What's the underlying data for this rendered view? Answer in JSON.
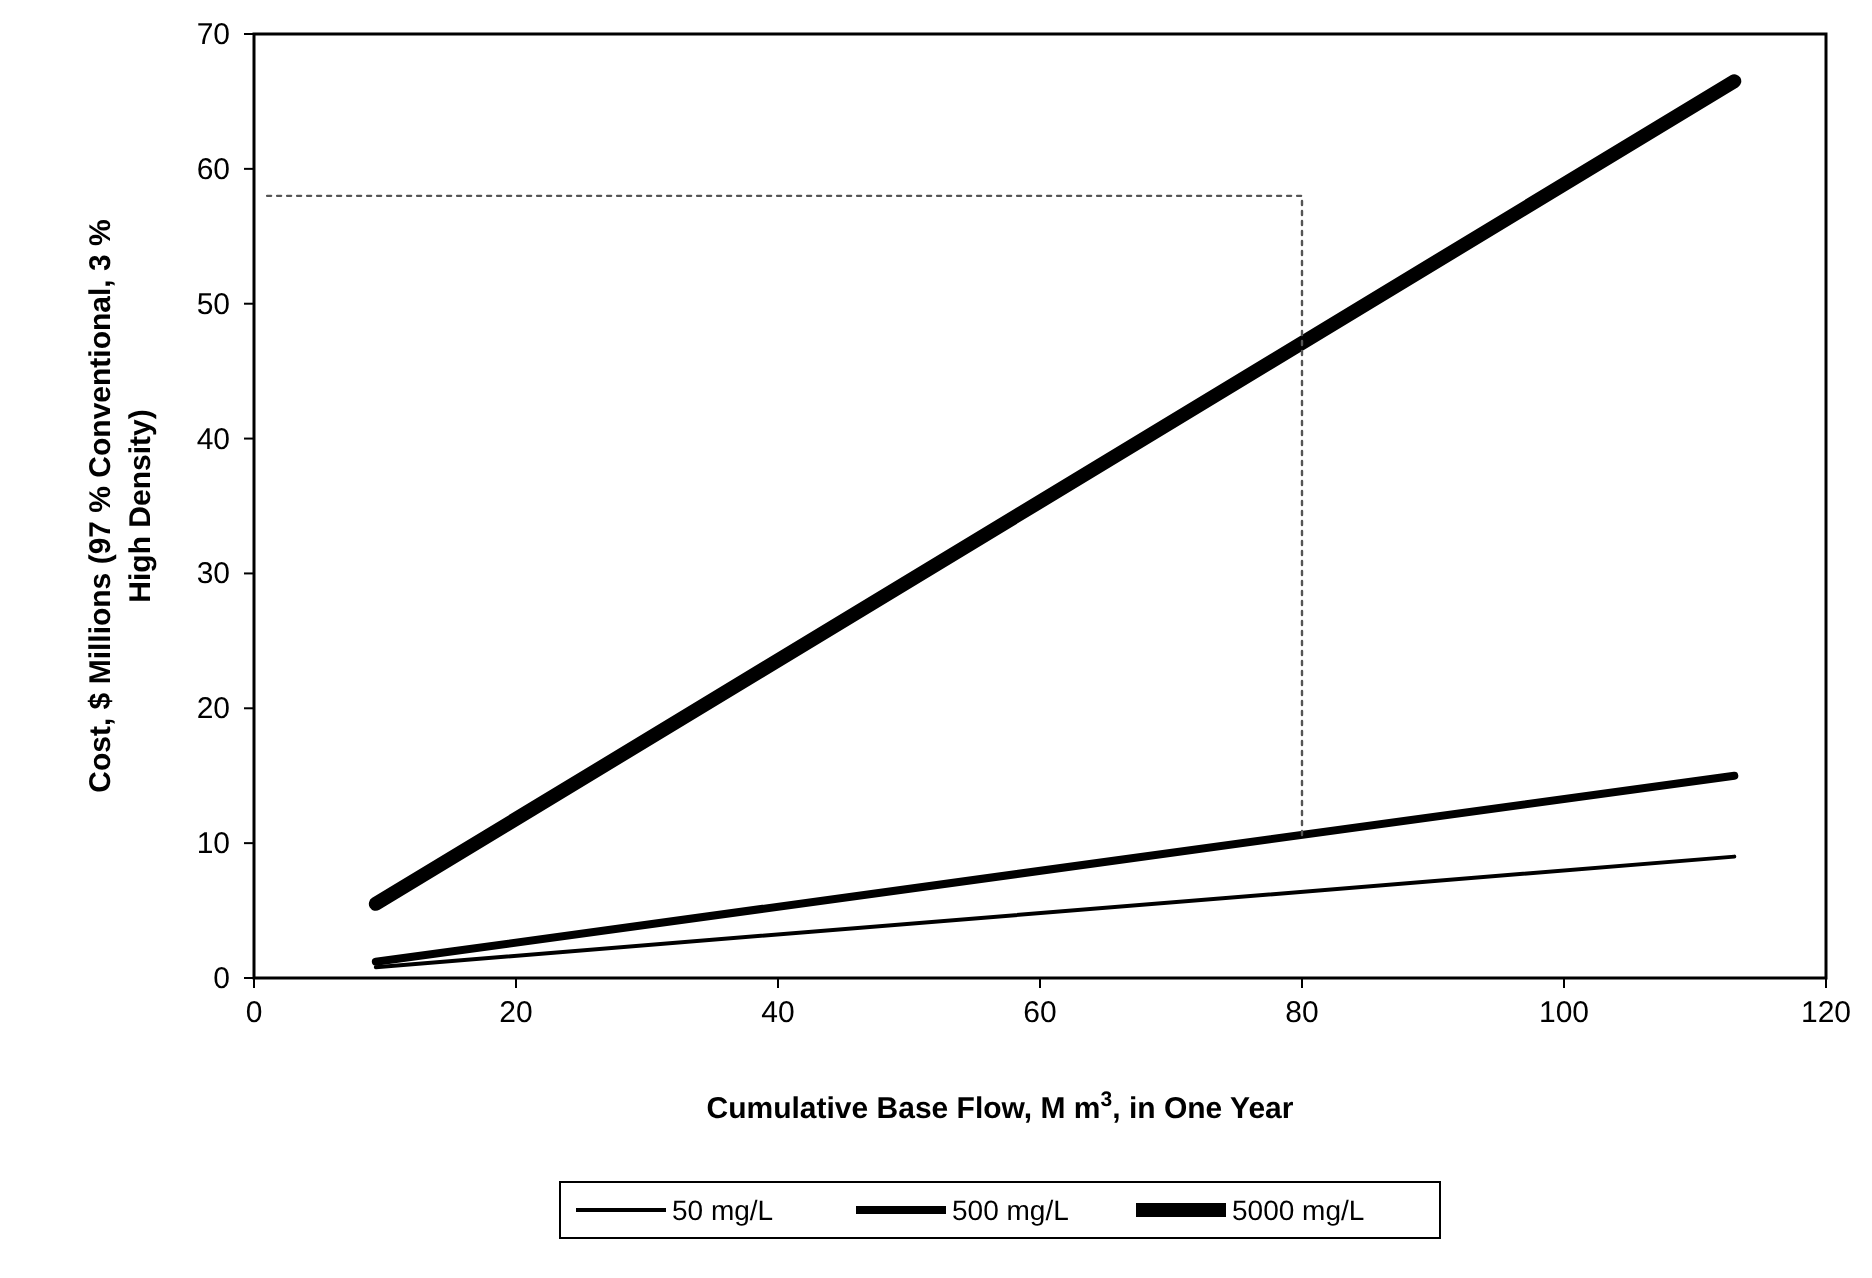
{
  "chart_data": {
    "type": "line",
    "xlabel": "Cumulative Base Flow, M m$^{3}$, in One Year",
    "ylabel": "Cost, $ Millions (97 % Conventional, 3 % High Density)",
    "xlim": [
      0,
      120
    ],
    "xticks": [
      0,
      20,
      40,
      60,
      80,
      100,
      120
    ],
    "ylim": [
      0,
      70
    ],
    "yticks": [
      0,
      10,
      20,
      30,
      40,
      50,
      60,
      70
    ],
    "grid": false,
    "legend": "bottom",
    "series": [
      {
        "name": "50 mg/L",
        "color": "#000000",
        "x": [
          9.3,
          113
        ],
        "values": [
          0.8,
          9
        ]
      },
      {
        "name": "500 mg/L",
        "color": "#000000",
        "x": [
          9.3,
          113
        ],
        "values": [
          1.2,
          15
        ]
      },
      {
        "name": "5000 mg/L",
        "color": "#000000",
        "x": [
          9.3,
          113
        ],
        "values": [
          5.5,
          66.5
        ]
      },
      {
        "color": "#555555",
        "line_style": "dotted",
        "x": [
          1,
          80,
          80
        ],
        "values": [
          58,
          58,
          10.5
        ]
      }
    ]
  }
}
